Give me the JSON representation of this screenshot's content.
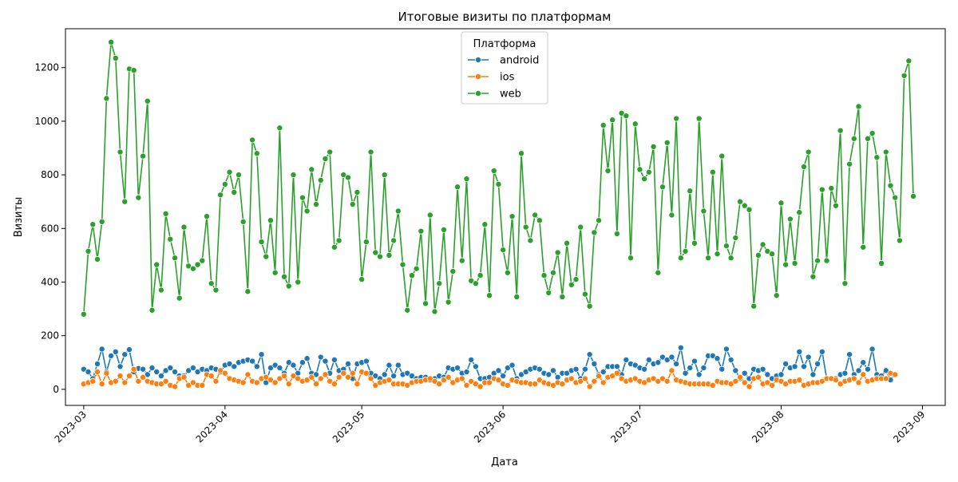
{
  "chart_data": {
    "type": "line",
    "title": "Итоговые визиты по платформам",
    "xlabel": "Дата",
    "ylabel": "Визиты",
    "xlim": [
      "2023-02-25",
      "2023-09-06"
    ],
    "ylim": [
      -60,
      1345
    ],
    "x_ticks": [
      "2023-03",
      "2023-04",
      "2023-05",
      "2023-06",
      "2023-07",
      "2023-08",
      "2023-09"
    ],
    "y_ticks": [
      0,
      200,
      400,
      600,
      800,
      1000,
      1200
    ],
    "grid": false,
    "legend": {
      "title": "Платформа",
      "position": "top-center"
    },
    "x_start": "2023-03-01",
    "series": [
      {
        "name": "android",
        "color": "#1f77b4",
        "values": [
          75,
          65,
          40,
          95,
          150,
          65,
          125,
          140,
          85,
          130,
          148,
          65,
          78,
          75,
          55,
          80,
          65,
          50,
          70,
          80,
          65,
          50,
          50,
          70,
          80,
          65,
          75,
          70,
          80,
          75,
          65,
          90,
          95,
          85,
          100,
          105,
          110,
          105,
          85,
          130,
          25,
          80,
          90,
          80,
          60,
          100,
          90,
          60,
          100,
          115,
          60,
          55,
          120,
          105,
          60,
          110,
          70,
          75,
          95,
          40,
          95,
          100,
          105,
          60,
          50,
          40,
          55,
          90,
          50,
          90,
          55,
          60,
          50,
          40,
          45,
          45,
          35,
          40,
          50,
          45,
          80,
          75,
          80,
          60,
          65,
          110,
          85,
          40,
          40,
          45,
          60,
          70,
          50,
          80,
          90,
          40,
          55,
          65,
          75,
          80,
          75,
          60,
          55,
          70,
          45,
          60,
          60,
          70,
          75,
          40,
          75,
          130,
          95,
          55,
          65,
          85,
          85,
          85,
          55,
          110,
          95,
          90,
          80,
          75,
          110,
          95,
          100,
          120,
          110,
          120,
          95,
          155,
          60,
          80,
          105,
          55,
          80,
          125,
          125,
          115,
          75,
          150,
          110,
          70,
          40,
          60,
          40,
          75,
          70,
          75,
          55,
          40,
          50,
          55,
          95,
          80,
          85,
          140,
          85,
          120,
          55,
          95,
          140,
          40,
          40,
          40,
          55,
          60,
          130,
          55,
          70,
          100,
          75,
          150,
          55,
          50,
          70,
          35,
          55
        ]
      },
      {
        "name": "ios",
        "color": "#ff7f0e",
        "values": [
          20,
          25,
          30,
          65,
          20,
          60,
          25,
          30,
          50,
          25,
          50,
          75,
          30,
          45,
          30,
          25,
          20,
          20,
          30,
          15,
          10,
          40,
          45,
          15,
          25,
          15,
          15,
          55,
          50,
          30,
          70,
          60,
          40,
          35,
          30,
          25,
          55,
          30,
          25,
          40,
          45,
          35,
          25,
          40,
          50,
          20,
          50,
          40,
          30,
          35,
          45,
          20,
          40,
          55,
          30,
          20,
          45,
          60,
          45,
          60,
          20,
          65,
          60,
          40,
          15,
          25,
          30,
          35,
          20,
          20,
          20,
          15,
          25,
          30,
          30,
          35,
          40,
          30,
          20,
          35,
          45,
          25,
          35,
          40,
          15,
          30,
          20,
          10,
          25,
          25,
          40,
          35,
          20,
          15,
          35,
          30,
          25,
          25,
          20,
          20,
          35,
          25,
          20,
          15,
          25,
          20,
          35,
          40,
          25,
          30,
          40,
          10,
          30,
          50,
          25,
          45,
          50,
          60,
          40,
          30,
          35,
          40,
          30,
          25,
          35,
          40,
          30,
          40,
          30,
          70,
          35,
          30,
          25,
          20,
          20,
          20,
          20,
          20,
          15,
          30,
          25,
          25,
          20,
          30,
          45,
          25,
          10,
          40,
          45,
          20,
          25,
          15,
          35,
          30,
          20,
          30,
          30,
          35,
          15,
          20,
          25,
          25,
          30,
          40,
          40,
          35,
          20,
          30,
          35,
          40,
          25,
          55,
          30,
          35,
          40,
          40,
          40,
          60,
          55
        ]
      },
      {
        "name": "web",
        "color": "#2ca02c",
        "values": [
          280,
          515,
          615,
          485,
          625,
          1085,
          1295,
          1235,
          885,
          700,
          1195,
          1190,
          715,
          870,
          1075,
          295,
          465,
          370,
          655,
          560,
          490,
          340,
          605,
          460,
          450,
          465,
          480,
          645,
          395,
          370,
          725,
          765,
          810,
          735,
          800,
          625,
          365,
          930,
          880,
          550,
          495,
          630,
          435,
          975,
          420,
          385,
          800,
          400,
          715,
          665,
          820,
          690,
          780,
          860,
          885,
          530,
          555,
          800,
          790,
          690,
          735,
          410,
          550,
          885,
          510,
          495,
          800,
          500,
          555,
          665,
          465,
          295,
          425,
          450,
          590,
          320,
          650,
          290,
          395,
          595,
          325,
          440,
          755,
          480,
          785,
          405,
          395,
          425,
          615,
          350,
          815,
          765,
          520,
          435,
          645,
          345,
          880,
          605,
          555,
          650,
          630,
          425,
          360,
          435,
          510,
          345,
          545,
          390,
          410,
          605,
          355,
          310,
          585,
          630,
          985,
          815,
          1005,
          580,
          1030,
          1020,
          490,
          990,
          820,
          785,
          810,
          905,
          435,
          755,
          920,
          650,
          1010,
          490,
          515,
          740,
          545,
          1010,
          665,
          490,
          810,
          505,
          870,
          535,
          490,
          565,
          700,
          685,
          670,
          310,
          500,
          540,
          515,
          505,
          350,
          695,
          465,
          635,
          470,
          660,
          830,
          885,
          420,
          480,
          745,
          480,
          750,
          685,
          965,
          395,
          840,
          935,
          1055,
          530,
          935,
          955,
          865,
          470,
          885,
          760,
          715,
          555,
          1170,
          1225,
          720
        ]
      }
    ]
  }
}
